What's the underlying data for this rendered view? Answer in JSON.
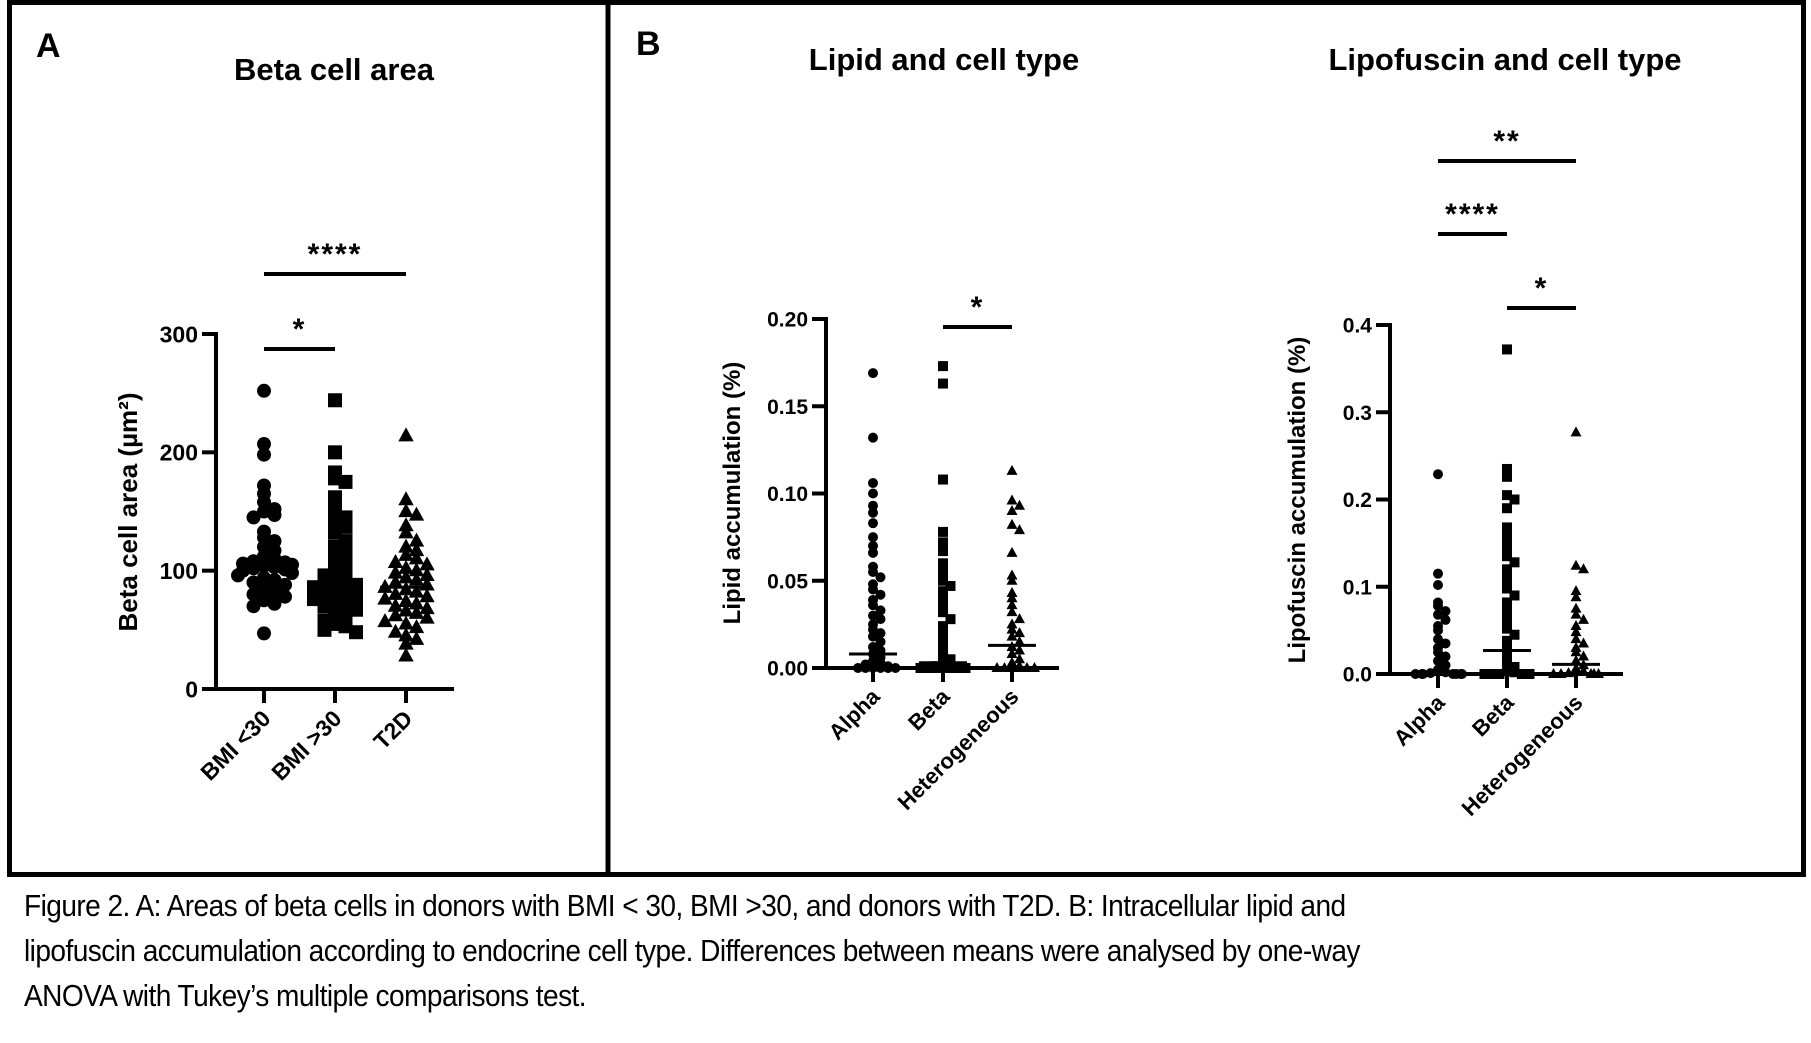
{
  "figure": {
    "panels": [
      {
        "letter": "A"
      },
      {
        "letter": "B"
      }
    ],
    "caption_lines": [
      "Figure 2.  A: Areas of beta cells in donors with BMI < 30, BMI >30, and donors with T2D.  B: Intracellular lipid and",
      "lipofuscin accumulation according to endocrine cell type. Differences between means were analysed by one-way",
      "ANOVA with Tukey’s multiple comparisons test."
    ]
  },
  "chart_data": [
    {
      "id": "beta-cell-area",
      "panel": "A",
      "type": "scatter",
      "title": "Beta cell area",
      "xlabel": "",
      "ylabel": "Beta cell area (µm²)",
      "ylim": [
        0,
        300
      ],
      "yticks": [
        0,
        100,
        200,
        300
      ],
      "ytick_labels": [
        "0",
        "100",
        "200",
        "300"
      ],
      "categories": [
        "BMI <30",
        "BMI >30",
        "T2D"
      ],
      "markers": [
        "circle",
        "square",
        "triangle"
      ],
      "means": [
        108,
        90,
        86
      ],
      "series": [
        {
          "name": "BMI <30",
          "values": [
            252,
            207,
            198,
            172,
            165,
            158,
            152,
            150,
            147,
            145,
            133,
            128,
            125,
            120,
            117,
            112,
            110,
            108,
            107,
            106,
            105,
            104,
            103,
            102,
            101,
            100,
            98,
            96,
            94,
            92,
            90,
            88,
            85,
            82,
            80,
            78,
            75,
            72,
            70,
            47
          ]
        },
        {
          "name": "BMI >30",
          "values": [
            244,
            200,
            183,
            178,
            175,
            162,
            157,
            150,
            145,
            140,
            137,
            132,
            125,
            120,
            116,
            110,
            105,
            100,
            98,
            96,
            94,
            92,
            90,
            88,
            86,
            84,
            82,
            80,
            78,
            76,
            74,
            72,
            70,
            67,
            65,
            62,
            58,
            55,
            53,
            50,
            48
          ]
        },
        {
          "name": "T2D",
          "values": [
            214,
            160,
            150,
            147,
            138,
            132,
            125,
            120,
            117,
            113,
            110,
            107,
            105,
            102,
            100,
            98,
            96,
            94,
            92,
            90,
            88,
            86,
            84,
            82,
            80,
            78,
            76,
            74,
            72,
            70,
            68,
            66,
            64,
            62,
            60,
            57,
            55,
            52,
            48,
            45,
            42,
            38,
            28
          ]
        }
      ],
      "significance": [
        {
          "groups": [
            "BMI <30",
            "BMI >30"
          ],
          "label": "*"
        },
        {
          "groups": [
            "BMI <30",
            "T2D"
          ],
          "label": "****"
        }
      ]
    },
    {
      "id": "lipid-cell-type",
      "panel": "B",
      "type": "scatter",
      "title": "Lipid and cell type",
      "xlabel": "",
      "ylabel": "Lipid accumulation (%)",
      "ylim": [
        0,
        0.2
      ],
      "yticks": [
        0,
        0.05,
        0.1,
        0.15,
        0.2
      ],
      "ytick_labels": [
        "0.00",
        "0.05",
        "0.10",
        "0.15",
        "0.20"
      ],
      "categories": [
        "Alpha",
        "Beta",
        "Heterogeneous"
      ],
      "markers": [
        "circle",
        "square",
        "triangle"
      ],
      "means": [
        0.008,
        0.003,
        0.013
      ],
      "series": [
        {
          "name": "Alpha",
          "values": [
            0.169,
            0.132,
            0.106,
            0.1,
            0.093,
            0.089,
            0.083,
            0.075,
            0.07,
            0.066,
            0.058,
            0.055,
            0.052,
            0.048,
            0.045,
            0.042,
            0.039,
            0.036,
            0.033,
            0.03,
            0.028,
            0.025,
            0.022,
            0.02,
            0.018,
            0.015,
            0.012,
            0.01,
            0.008,
            0.006,
            0.004,
            0.003,
            0.002,
            0.001,
            0.0,
            0.0,
            0.0,
            0.0,
            0.0,
            0.0
          ]
        },
        {
          "name": "Beta",
          "values": [
            0.173,
            0.163,
            0.108,
            0.078,
            0.072,
            0.067,
            0.06,
            0.057,
            0.054,
            0.05,
            0.047,
            0.044,
            0.04,
            0.036,
            0.032,
            0.028,
            0.024,
            0.02,
            0.016,
            0.012,
            0.008,
            0.005,
            0.003,
            0.002,
            0.001,
            0.0,
            0.0,
            0.0,
            0.0,
            0.0,
            0.0,
            0.0,
            0.0
          ]
        },
        {
          "name": "Heterogeneous",
          "values": [
            0.113,
            0.096,
            0.093,
            0.09,
            0.082,
            0.079,
            0.066,
            0.053,
            0.05,
            0.043,
            0.04,
            0.036,
            0.032,
            0.028,
            0.025,
            0.022,
            0.02,
            0.018,
            0.015,
            0.012,
            0.01,
            0.008,
            0.005,
            0.003,
            0.001,
            0.0,
            0.0,
            0.0,
            0.0,
            0.0,
            0.0
          ]
        }
      ],
      "significance": [
        {
          "groups": [
            "Beta",
            "Heterogeneous"
          ],
          "label": "*"
        }
      ]
    },
    {
      "id": "lipofuscin-cell-type",
      "panel": "B",
      "type": "scatter",
      "title": "Lipofuscin and cell type",
      "xlabel": "",
      "ylabel": "Lipofuscin accumulation (%)",
      "ylim": [
        0,
        0.4
      ],
      "yticks": [
        0,
        0.1,
        0.2,
        0.3,
        0.4
      ],
      "ytick_labels": [
        "0.0",
        "0.1",
        "0.2",
        "0.3",
        "0.4"
      ],
      "categories": [
        "Alpha",
        "Beta",
        "Heterogeneous"
      ],
      "markers": [
        "circle",
        "square",
        "triangle"
      ],
      "means": [
        0.002,
        0.027,
        0.011
      ],
      "series": [
        {
          "name": "Alpha",
          "values": [
            0.229,
            0.115,
            0.102,
            0.082,
            0.078,
            0.072,
            0.068,
            0.062,
            0.055,
            0.05,
            0.04,
            0.035,
            0.03,
            0.025,
            0.02,
            0.015,
            0.01,
            0.005,
            0.002,
            0.001,
            0.0,
            0.0,
            0.0,
            0.0,
            0.0,
            0.0,
            0.0
          ]
        },
        {
          "name": "Beta",
          "values": [
            0.372,
            0.235,
            0.226,
            0.205,
            0.2,
            0.19,
            0.168,
            0.16,
            0.15,
            0.142,
            0.135,
            0.128,
            0.12,
            0.112,
            0.105,
            0.098,
            0.09,
            0.082,
            0.075,
            0.068,
            0.06,
            0.052,
            0.045,
            0.038,
            0.03,
            0.022,
            0.015,
            0.008,
            0.004,
            0.002,
            0.0,
            0.0,
            0.0,
            0.0,
            0.0,
            0.0
          ]
        },
        {
          "name": "Heterogeneous",
          "values": [
            0.277,
            0.124,
            0.12,
            0.095,
            0.088,
            0.075,
            0.068,
            0.062,
            0.055,
            0.048,
            0.04,
            0.035,
            0.03,
            0.025,
            0.02,
            0.015,
            0.01,
            0.006,
            0.003,
            0.001,
            0.0,
            0.0,
            0.0,
            0.0,
            0.0
          ]
        }
      ],
      "significance": [
        {
          "groups": [
            "Alpha",
            "Beta"
          ],
          "label": "****"
        },
        {
          "groups": [
            "Beta",
            "Heterogeneous"
          ],
          "label": "*"
        },
        {
          "groups": [
            "Alpha",
            "Heterogeneous"
          ],
          "label": "**"
        }
      ]
    }
  ]
}
